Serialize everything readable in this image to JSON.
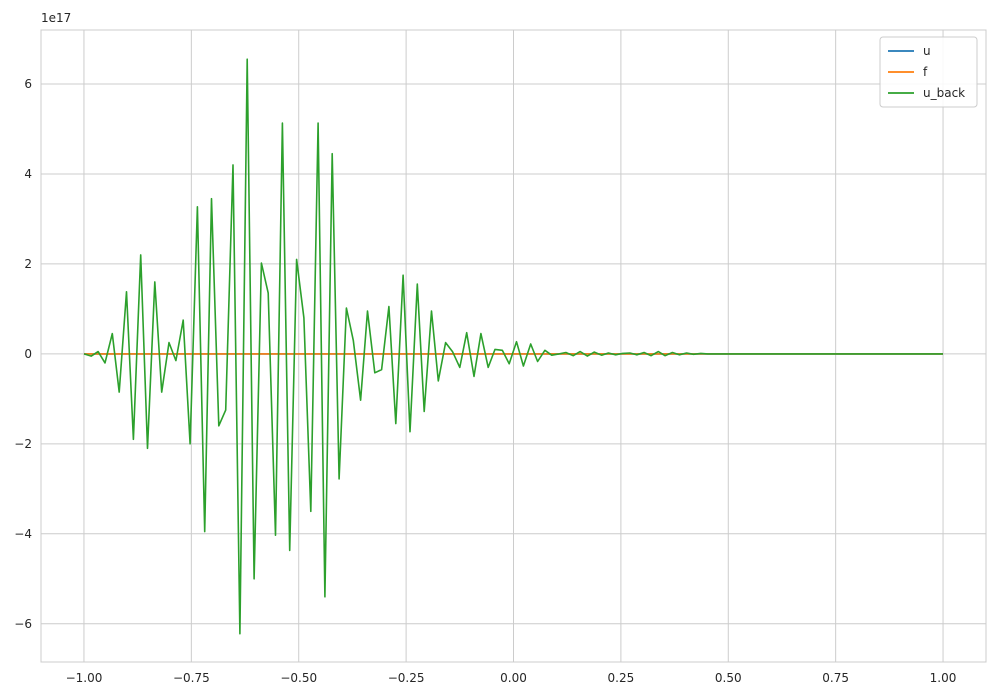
{
  "chart_data": {
    "type": "line",
    "title": "",
    "xlabel": "",
    "ylabel": "",
    "y_offset_text": "1e17",
    "xlim": [
      -1.1,
      1.1
    ],
    "ylim": [
      -6.85,
      7.2
    ],
    "y_unit_scale": 1e+17,
    "grid": true,
    "legend_position": "top-right",
    "x_ticks": [
      -1.0,
      -0.75,
      -0.5,
      -0.25,
      0.0,
      0.25,
      0.5,
      0.75,
      1.0
    ],
    "x_tick_labels": [
      "−1.00",
      "−0.75",
      "−0.50",
      "−0.25",
      "0.00",
      "0.25",
      "0.50",
      "0.75",
      "1.00"
    ],
    "y_ticks": [
      -6,
      -4,
      -2,
      0,
      2,
      4,
      6
    ],
    "y_tick_labels": [
      "−6",
      "−4",
      "−2",
      "0",
      "2",
      "4",
      "6"
    ],
    "x": [
      -1.0,
      -0.983,
      -0.967,
      -0.951,
      -0.934,
      -0.918,
      -0.901,
      -0.885,
      -0.868,
      -0.852,
      -0.835,
      -0.819,
      -0.802,
      -0.786,
      -0.769,
      -0.753,
      -0.736,
      -0.719,
      -0.703,
      -0.686,
      -0.67,
      -0.653,
      -0.637,
      -0.62,
      -0.604,
      -0.587,
      -0.571,
      -0.554,
      -0.538,
      -0.521,
      -0.505,
      -0.488,
      -0.472,
      -0.455,
      -0.439,
      -0.422,
      -0.406,
      -0.389,
      -0.373,
      -0.356,
      -0.34,
      -0.323,
      -0.307,
      -0.29,
      -0.274,
      -0.257,
      -0.241,
      -0.224,
      -0.208,
      -0.191,
      -0.175,
      -0.158,
      -0.142,
      -0.125,
      -0.109,
      -0.092,
      -0.076,
      -0.059,
      -0.043,
      -0.026,
      -0.01,
      0.007,
      0.023,
      0.04,
      0.056,
      0.073,
      0.089,
      0.106,
      0.122,
      0.139,
      0.155,
      0.172,
      0.188,
      0.205,
      0.221,
      0.238,
      0.254,
      0.271,
      0.287,
      0.304,
      0.32,
      0.337,
      0.353,
      0.37,
      0.386,
      0.403,
      0.419,
      0.436,
      0.452,
      0.469,
      1.0
    ],
    "series": [
      {
        "name": "u",
        "color": "#1f77b4",
        "values": [
          0,
          0,
          0,
          0,
          0,
          0,
          0,
          0,
          0,
          0,
          0,
          0,
          0,
          0,
          0,
          0,
          0,
          0,
          0,
          0,
          0,
          0,
          0,
          0,
          0,
          0,
          0,
          0,
          0,
          0,
          0,
          0,
          0,
          0,
          0,
          0,
          0,
          0,
          0,
          0,
          0,
          0,
          0,
          0,
          0,
          0,
          0,
          0,
          0,
          0,
          0,
          0,
          0,
          0,
          0,
          0,
          0,
          0,
          0,
          0,
          0,
          0,
          0,
          0,
          0,
          0,
          0,
          0,
          0,
          0,
          0,
          0,
          0,
          0,
          0,
          0,
          0,
          0,
          0,
          0,
          0,
          0,
          0,
          0,
          0,
          0,
          0,
          0,
          0,
          0,
          0
        ]
      },
      {
        "name": "f",
        "color": "#ff7f0e",
        "values": [
          0,
          0,
          0,
          0,
          0,
          0,
          0,
          0,
          0,
          0,
          0,
          0,
          0,
          0,
          0,
          0,
          0,
          0,
          0,
          0,
          0,
          0,
          0,
          0,
          0,
          0,
          0,
          0,
          0,
          0,
          0,
          0,
          0,
          0,
          0,
          0,
          0,
          0,
          0,
          0,
          0,
          0,
          0,
          0,
          0,
          0,
          0,
          0,
          0,
          0,
          0,
          0,
          0,
          0,
          0,
          0,
          0,
          0,
          0,
          0,
          0,
          0,
          0,
          0,
          0,
          0,
          0,
          0,
          0,
          0,
          0,
          0,
          0,
          0,
          0,
          0,
          0,
          0,
          0,
          0,
          0,
          0,
          0,
          0,
          0,
          0,
          0,
          0,
          0,
          0,
          0
        ]
      },
      {
        "name": "u_back",
        "color": "#2ca02c",
        "values": [
          0.0,
          -0.05,
          0.05,
          -0.2,
          0.45,
          -0.85,
          1.38,
          -1.9,
          2.2,
          -2.1,
          1.6,
          -0.85,
          0.25,
          -0.15,
          0.75,
          -2.0,
          3.27,
          -3.95,
          3.45,
          -1.6,
          -1.25,
          4.2,
          -6.22,
          6.55,
          -5.0,
          2.02,
          1.35,
          -4.03,
          5.13,
          -4.37,
          2.1,
          0.8,
          -3.5,
          5.13,
          -5.4,
          4.45,
          -2.78,
          1.02,
          0.3,
          -1.03,
          0.95,
          -0.42,
          -0.35,
          1.05,
          -1.55,
          1.75,
          -1.73,
          1.55,
          -1.28,
          0.95,
          -0.6,
          0.25,
          0.05,
          -0.3,
          0.47,
          -0.5,
          0.45,
          -0.3,
          0.1,
          0.08,
          -0.22,
          0.27,
          -0.27,
          0.22,
          -0.17,
          0.08,
          -0.03,
          0.0,
          0.03,
          -0.04,
          0.05,
          -0.05,
          0.04,
          -0.03,
          0.02,
          -0.02,
          0.01,
          0.02,
          -0.02,
          0.03,
          -0.04,
          0.05,
          -0.04,
          0.03,
          -0.02,
          0.02,
          -0.01,
          0.01,
          0.0,
          0.0,
          0.0
        ]
      }
    ]
  }
}
